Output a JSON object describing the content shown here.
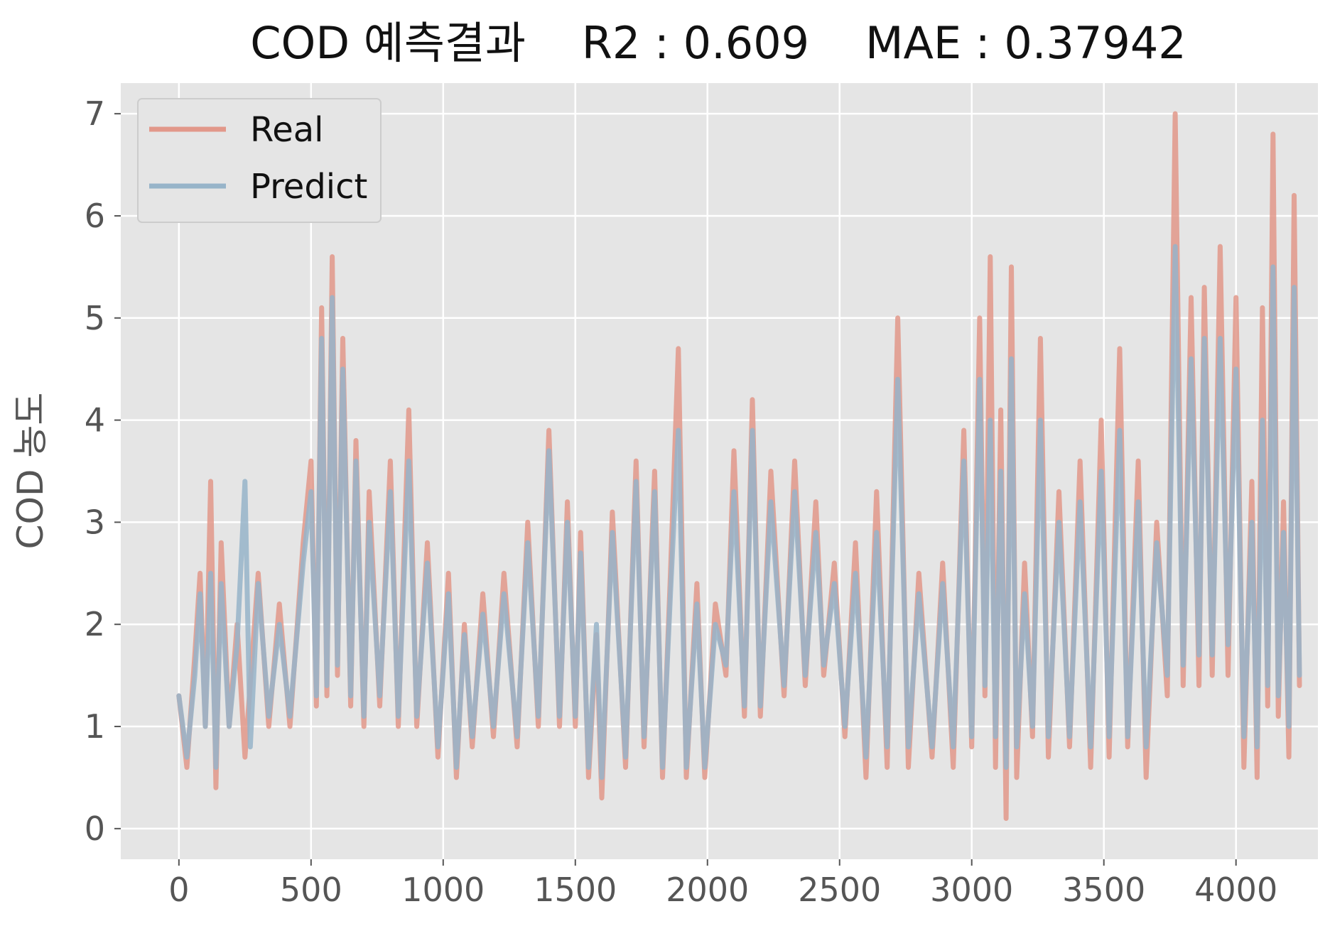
{
  "chart_data": {
    "type": "line",
    "title": "COD 예측결과    R2 : 0.609    MAE : 0.37942",
    "xlabel": "",
    "ylabel": "COD 농도",
    "xlim": [
      -220,
      4310
    ],
    "ylim": [
      -0.3,
      7.3
    ],
    "x_ticks": [
      0,
      500,
      1000,
      1500,
      2000,
      2500,
      3000,
      3500,
      4000
    ],
    "x_tick_labels": [
      "0",
      "500",
      "1000",
      "1500",
      "2000",
      "2500",
      "3000",
      "3500",
      "4000"
    ],
    "y_ticks": [
      0,
      1,
      2,
      3,
      4,
      5,
      6,
      7
    ],
    "y_tick_labels": [
      "0",
      "1",
      "2",
      "3",
      "4",
      "5",
      "6",
      "7"
    ],
    "grid": true,
    "legend": {
      "position": "top-left"
    },
    "series": [
      {
        "name": "Real",
        "color": "#e2988a",
        "points": [
          [
            0,
            1.3
          ],
          [
            30,
            0.6
          ],
          [
            60,
            1.7
          ],
          [
            80,
            2.5
          ],
          [
            100,
            1.0
          ],
          [
            120,
            3.4
          ],
          [
            140,
            0.4
          ],
          [
            160,
            2.8
          ],
          [
            190,
            1.0
          ],
          [
            220,
            2.0
          ],
          [
            250,
            0.7
          ],
          [
            300,
            2.5
          ],
          [
            340,
            1.0
          ],
          [
            380,
            2.2
          ],
          [
            420,
            1.0
          ],
          [
            470,
            2.8
          ],
          [
            500,
            3.6
          ],
          [
            520,
            1.2
          ],
          [
            540,
            5.1
          ],
          [
            560,
            1.3
          ],
          [
            580,
            5.6
          ],
          [
            600,
            1.5
          ],
          [
            620,
            4.8
          ],
          [
            650,
            1.2
          ],
          [
            670,
            3.8
          ],
          [
            700,
            1.0
          ],
          [
            720,
            3.3
          ],
          [
            760,
            1.2
          ],
          [
            800,
            3.6
          ],
          [
            830,
            1.0
          ],
          [
            870,
            4.1
          ],
          [
            900,
            1.0
          ],
          [
            940,
            2.8
          ],
          [
            980,
            0.7
          ],
          [
            1020,
            2.5
          ],
          [
            1050,
            0.5
          ],
          [
            1080,
            2.0
          ],
          [
            1110,
            0.8
          ],
          [
            1150,
            2.3
          ],
          [
            1190,
            0.9
          ],
          [
            1230,
            2.5
          ],
          [
            1280,
            0.8
          ],
          [
            1320,
            3.0
          ],
          [
            1360,
            1.0
          ],
          [
            1400,
            3.9
          ],
          [
            1440,
            1.0
          ],
          [
            1470,
            3.2
          ],
          [
            1500,
            1.0
          ],
          [
            1520,
            2.9
          ],
          [
            1550,
            0.5
          ],
          [
            1580,
            1.9
          ],
          [
            1600,
            0.3
          ],
          [
            1640,
            3.1
          ],
          [
            1690,
            0.6
          ],
          [
            1730,
            3.6
          ],
          [
            1760,
            0.8
          ],
          [
            1800,
            3.5
          ],
          [
            1830,
            0.5
          ],
          [
            1860,
            2.5
          ],
          [
            1890,
            4.7
          ],
          [
            1920,
            0.5
          ],
          [
            1960,
            2.4
          ],
          [
            1990,
            0.5
          ],
          [
            2030,
            2.2
          ],
          [
            2070,
            1.5
          ],
          [
            2100,
            3.7
          ],
          [
            2140,
            1.1
          ],
          [
            2170,
            4.2
          ],
          [
            2200,
            1.1
          ],
          [
            2240,
            3.5
          ],
          [
            2290,
            1.3
          ],
          [
            2330,
            3.6
          ],
          [
            2370,
            1.4
          ],
          [
            2410,
            3.2
          ],
          [
            2440,
            1.5
          ],
          [
            2480,
            2.6
          ],
          [
            2520,
            0.9
          ],
          [
            2560,
            2.8
          ],
          [
            2600,
            0.5
          ],
          [
            2640,
            3.3
          ],
          [
            2680,
            0.6
          ],
          [
            2720,
            5.0
          ],
          [
            2760,
            0.6
          ],
          [
            2800,
            2.5
          ],
          [
            2850,
            0.7
          ],
          [
            2890,
            2.6
          ],
          [
            2930,
            0.6
          ],
          [
            2970,
            3.9
          ],
          [
            3000,
            0.8
          ],
          [
            3030,
            5.0
          ],
          [
            3050,
            1.3
          ],
          [
            3070,
            5.6
          ],
          [
            3090,
            0.6
          ],
          [
            3110,
            4.1
          ],
          [
            3130,
            0.1
          ],
          [
            3150,
            5.5
          ],
          [
            3170,
            0.5
          ],
          [
            3200,
            2.6
          ],
          [
            3230,
            0.9
          ],
          [
            3260,
            4.8
          ],
          [
            3290,
            0.7
          ],
          [
            3330,
            3.3
          ],
          [
            3370,
            0.8
          ],
          [
            3410,
            3.6
          ],
          [
            3450,
            0.6
          ],
          [
            3490,
            4.0
          ],
          [
            3520,
            0.7
          ],
          [
            3560,
            4.7
          ],
          [
            3590,
            0.8
          ],
          [
            3630,
            3.6
          ],
          [
            3660,
            0.5
          ],
          [
            3700,
            3.0
          ],
          [
            3740,
            1.3
          ],
          [
            3770,
            7.0
          ],
          [
            3800,
            1.4
          ],
          [
            3830,
            5.2
          ],
          [
            3860,
            1.4
          ],
          [
            3880,
            5.3
          ],
          [
            3910,
            1.5
          ],
          [
            3940,
            5.7
          ],
          [
            3970,
            1.5
          ],
          [
            4000,
            5.2
          ],
          [
            4030,
            0.6
          ],
          [
            4060,
            3.4
          ],
          [
            4080,
            0.5
          ],
          [
            4100,
            5.1
          ],
          [
            4120,
            1.2
          ],
          [
            4140,
            6.8
          ],
          [
            4160,
            1.1
          ],
          [
            4180,
            3.2
          ],
          [
            4200,
            0.7
          ],
          [
            4220,
            6.2
          ],
          [
            4240,
            1.4
          ]
        ]
      },
      {
        "name": "Predict",
        "color": "#97b4c9",
        "points": [
          [
            0,
            1.3
          ],
          [
            30,
            0.7
          ],
          [
            60,
            1.5
          ],
          [
            80,
            2.3
          ],
          [
            100,
            1.0
          ],
          [
            120,
            2.5
          ],
          [
            140,
            0.6
          ],
          [
            160,
            2.4
          ],
          [
            190,
            1.0
          ],
          [
            220,
            1.8
          ],
          [
            250,
            3.4
          ],
          [
            270,
            0.8
          ],
          [
            300,
            2.4
          ],
          [
            340,
            1.1
          ],
          [
            380,
            2.0
          ],
          [
            420,
            1.1
          ],
          [
            470,
            2.6
          ],
          [
            500,
            3.3
          ],
          [
            520,
            1.3
          ],
          [
            540,
            4.8
          ],
          [
            560,
            1.4
          ],
          [
            580,
            5.2
          ],
          [
            600,
            1.6
          ],
          [
            620,
            4.5
          ],
          [
            650,
            1.3
          ],
          [
            670,
            3.6
          ],
          [
            700,
            1.1
          ],
          [
            720,
            3.0
          ],
          [
            760,
            1.3
          ],
          [
            800,
            3.3
          ],
          [
            830,
            1.1
          ],
          [
            870,
            3.6
          ],
          [
            900,
            1.1
          ],
          [
            940,
            2.6
          ],
          [
            980,
            0.8
          ],
          [
            1020,
            2.3
          ],
          [
            1050,
            0.6
          ],
          [
            1080,
            1.9
          ],
          [
            1110,
            0.9
          ],
          [
            1150,
            2.1
          ],
          [
            1190,
            1.0
          ],
          [
            1230,
            2.3
          ],
          [
            1280,
            0.9
          ],
          [
            1320,
            2.8
          ],
          [
            1360,
            1.1
          ],
          [
            1400,
            3.7
          ],
          [
            1440,
            1.1
          ],
          [
            1470,
            3.0
          ],
          [
            1500,
            1.1
          ],
          [
            1520,
            2.7
          ],
          [
            1550,
            0.6
          ],
          [
            1580,
            2.0
          ],
          [
            1600,
            0.5
          ],
          [
            1640,
            2.9
          ],
          [
            1690,
            0.7
          ],
          [
            1730,
            3.4
          ],
          [
            1760,
            0.9
          ],
          [
            1800,
            3.3
          ],
          [
            1830,
            0.6
          ],
          [
            1860,
            2.3
          ],
          [
            1890,
            3.9
          ],
          [
            1920,
            0.6
          ],
          [
            1960,
            2.2
          ],
          [
            1990,
            0.6
          ],
          [
            2030,
            2.0
          ],
          [
            2070,
            1.6
          ],
          [
            2100,
            3.3
          ],
          [
            2140,
            1.2
          ],
          [
            2170,
            3.9
          ],
          [
            2200,
            1.2
          ],
          [
            2240,
            3.2
          ],
          [
            2290,
            1.4
          ],
          [
            2330,
            3.3
          ],
          [
            2370,
            1.5
          ],
          [
            2410,
            2.9
          ],
          [
            2440,
            1.6
          ],
          [
            2480,
            2.4
          ],
          [
            2520,
            1.0
          ],
          [
            2560,
            2.5
          ],
          [
            2600,
            0.7
          ],
          [
            2640,
            2.9
          ],
          [
            2680,
            0.8
          ],
          [
            2720,
            4.4
          ],
          [
            2760,
            0.8
          ],
          [
            2800,
            2.3
          ],
          [
            2850,
            0.8
          ],
          [
            2890,
            2.4
          ],
          [
            2930,
            0.8
          ],
          [
            2970,
            3.6
          ],
          [
            3000,
            0.9
          ],
          [
            3030,
            4.4
          ],
          [
            3050,
            1.4
          ],
          [
            3070,
            4.0
          ],
          [
            3090,
            0.9
          ],
          [
            3110,
            3.5
          ],
          [
            3130,
            0.6
          ],
          [
            3150,
            4.6
          ],
          [
            3170,
            0.8
          ],
          [
            3200,
            2.3
          ],
          [
            3230,
            1.0
          ],
          [
            3260,
            4.0
          ],
          [
            3290,
            0.9
          ],
          [
            3330,
            3.0
          ],
          [
            3370,
            0.9
          ],
          [
            3410,
            3.2
          ],
          [
            3450,
            0.8
          ],
          [
            3490,
            3.5
          ],
          [
            3520,
            0.9
          ],
          [
            3560,
            3.9
          ],
          [
            3590,
            0.9
          ],
          [
            3630,
            3.2
          ],
          [
            3660,
            0.8
          ],
          [
            3700,
            2.8
          ],
          [
            3740,
            1.5
          ],
          [
            3770,
            5.7
          ],
          [
            3800,
            1.6
          ],
          [
            3830,
            4.6
          ],
          [
            3860,
            1.7
          ],
          [
            3880,
            4.8
          ],
          [
            3910,
            1.7
          ],
          [
            3940,
            4.8
          ],
          [
            3970,
            1.8
          ],
          [
            4000,
            4.5
          ],
          [
            4030,
            0.9
          ],
          [
            4060,
            3.0
          ],
          [
            4080,
            0.8
          ],
          [
            4100,
            4.0
          ],
          [
            4120,
            1.4
          ],
          [
            4140,
            5.5
          ],
          [
            4160,
            1.3
          ],
          [
            4180,
            2.9
          ],
          [
            4200,
            1.0
          ],
          [
            4220,
            5.3
          ],
          [
            4240,
            1.5
          ]
        ]
      }
    ]
  }
}
